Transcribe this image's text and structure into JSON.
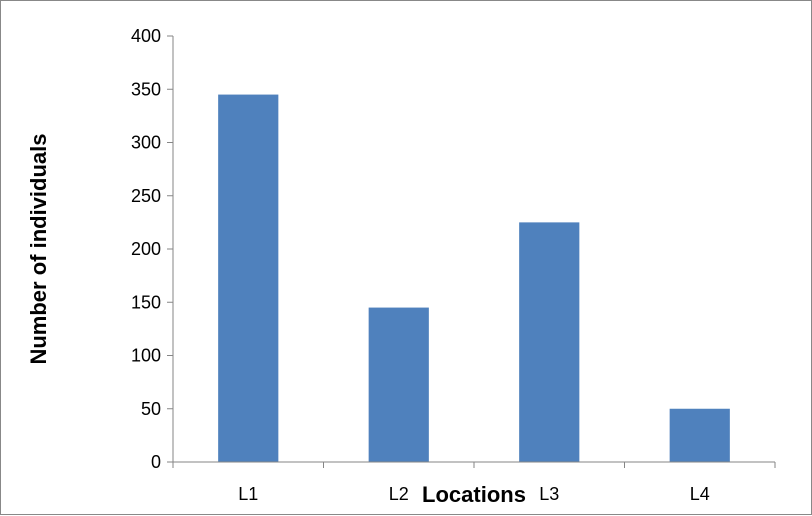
{
  "chart_data": {
    "type": "bar",
    "title": "",
    "xlabel": "Locations",
    "ylabel": "Number of individuals",
    "categories": [
      "L1",
      "L2",
      "L3",
      "L4"
    ],
    "series": [
      {
        "values": [
          345,
          145,
          225,
          50
        ],
        "color": "#4f81bd"
      }
    ],
    "ylim": [
      0,
      400
    ],
    "yticks": [
      0,
      50,
      100,
      150,
      200,
      250,
      300,
      350,
      400
    ],
    "grid": false,
    "legend": "none"
  }
}
